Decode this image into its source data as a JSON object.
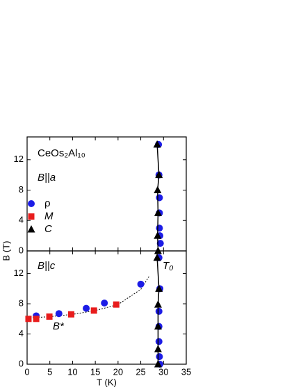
{
  "chart_data": [
    {
      "type": "scatter",
      "title": "CeOs₂Al₁₀",
      "annotations": [
        "B||a"
      ],
      "ylabel": "B (T)",
      "xlim": [
        0,
        35
      ],
      "xticks": [
        0,
        5,
        10,
        15,
        20,
        25,
        30,
        35
      ],
      "ylim": [
        0,
        15
      ],
      "yticks": [
        0,
        4,
        8,
        12
      ],
      "legend": "upper left",
      "series": [
        {
          "name": "ρ",
          "color": "#1c1ce6",
          "marker": "circle",
          "x": [
            28.9,
            29.0,
            29.1,
            29.1,
            29.1,
            29.2,
            29.3
          ],
          "values": [
            14,
            10,
            7,
            5,
            3,
            2,
            1
          ]
        },
        {
          "name": "M",
          "color": "#e81c1c",
          "marker": "square",
          "x": [],
          "values": []
        },
        {
          "name": "C",
          "color": "#000000",
          "marker": "triangle",
          "line": "solid",
          "x": [
            28.6,
            29.0,
            28.7,
            28.8,
            28.7,
            28.8
          ],
          "values": [
            14,
            10,
            8,
            5,
            2,
            0
          ]
        }
      ]
    },
    {
      "type": "scatter",
      "annotations": [
        "B||c",
        "B*",
        "T₀"
      ],
      "xlabel": "T (K)",
      "xlim": [
        0,
        35
      ],
      "xticks": [
        0,
        5,
        10,
        15,
        20,
        25,
        30,
        35
      ],
      "ylim": [
        0,
        15
      ],
      "yticks": [
        0,
        4,
        8,
        12
      ],
      "series": [
        {
          "color": "#000000",
          "marker": "none",
          "line": "dotted",
          "x": [
            0,
            5,
            10,
            15,
            20,
            25,
            26.8
          ],
          "values": [
            6.1,
            6.3,
            6.6,
            7.1,
            7.9,
            9.9,
            11.6
          ]
        },
        {
          "color": "#1c1ce6",
          "marker": "circle",
          "x": [
            2,
            7,
            13,
            17,
            25,
            29.0,
            29.2,
            29.0,
            29.0,
            29.0,
            29.1,
            29.2
          ],
          "values": [
            6.4,
            6.7,
            7.4,
            8.1,
            10.6,
            14.1,
            10,
            7,
            5,
            3,
            1,
            0
          ]
        },
        {
          "color": "#e81c1c",
          "marker": "square",
          "x": [
            0.3,
            2,
            4.9,
            9.7,
            14.7,
            19.6
          ],
          "values": [
            6.0,
            6.0,
            6.3,
            6.6,
            7.1,
            7.9
          ]
        },
        {
          "color": "#000000",
          "marker": "triangle",
          "line": "solid",
          "x": [
            28.6,
            29.0,
            28.8,
            28.8,
            28.8,
            28.8
          ],
          "values": [
            14.1,
            10,
            7.9,
            5,
            2,
            0
          ]
        }
      ]
    }
  ]
}
